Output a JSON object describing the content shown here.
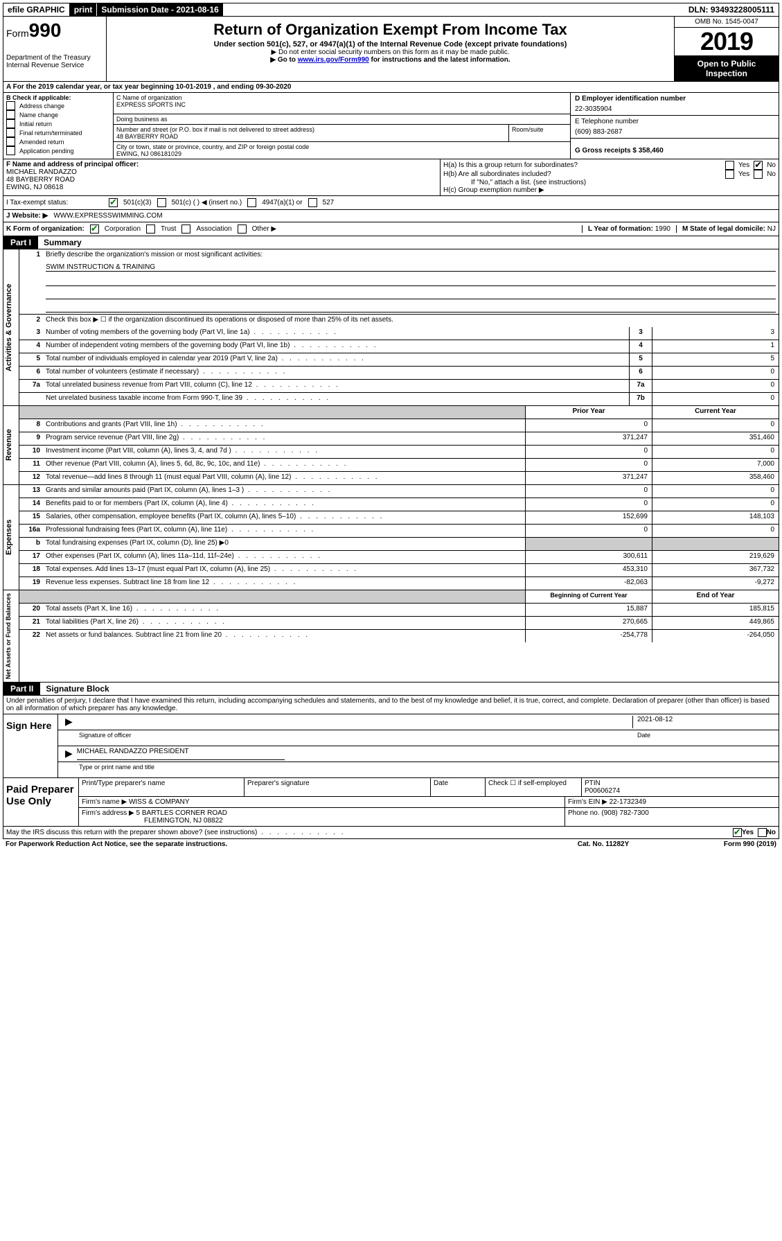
{
  "topbar": {
    "efile": "efile GRAPHIC",
    "print": "print",
    "submission": "Submission Date - 2021-08-16",
    "dln": "DLN: 93493228005111"
  },
  "header": {
    "form_prefix": "Form",
    "form_number": "990",
    "dept": "Department of the Treasury",
    "irs": "Internal Revenue Service",
    "title": "Return of Organization Exempt From Income Tax",
    "subtitle": "Under section 501(c), 527, or 4947(a)(1) of the Internal Revenue Code (except private foundations)",
    "note1": "▶ Do not enter social security numbers on this form as it may be made public.",
    "note2_pre": "▶ Go to ",
    "note2_link": "www.irs.gov/Form990",
    "note2_post": " for instructions and the latest information.",
    "omb": "OMB No. 1545-0047",
    "year": "2019",
    "open": "Open to Public Inspection"
  },
  "line_a": "A For the 2019 calendar year, or tax year beginning 10-01-2019    , and ending 09-30-2020",
  "box_b": {
    "label": "B Check if applicable:",
    "items": [
      "Address change",
      "Name change",
      "Initial return",
      "Final return/terminated",
      "Amended return",
      "Application pending"
    ]
  },
  "box_c": {
    "name_label": "C Name of organization",
    "name": "EXPRESS SPORTS INC",
    "dba_label": "Doing business as",
    "addr_label": "Number and street (or P.O. box if mail is not delivered to street address)",
    "addr": "48 BAYBERRY ROAD",
    "room_label": "Room/suite",
    "city_label": "City or town, state or province, country, and ZIP or foreign postal code",
    "city": "EWING, NJ  086181029"
  },
  "box_d": {
    "label": "D Employer identification number",
    "value": "22-3035904"
  },
  "box_e": {
    "label": "E Telephone number",
    "value": "(609) 883-2687"
  },
  "box_g": {
    "label": "G Gross receipts $",
    "value": "358,460"
  },
  "box_f": {
    "label": "F Name and address of principal officer:",
    "name": "MICHAEL RANDAZZO",
    "addr1": "48 BAYBERRY ROAD",
    "addr2": "EWING, NJ  08618"
  },
  "box_h": {
    "ha": "H(a)  Is this a group return for subordinates?",
    "hb": "H(b)  Are all subordinates included?",
    "hb_note": "If \"No,\" attach a list. (see instructions)",
    "hc": "H(c)  Group exemption number ▶",
    "yes": "Yes",
    "no": "No"
  },
  "line_i": {
    "label": "I    Tax-exempt status:",
    "opts": [
      "501(c)(3)",
      "501(c) (   ) ◀ (insert no.)",
      "4947(a)(1) or",
      "527"
    ]
  },
  "line_j": {
    "label": "J   Website: ▶",
    "value": "WWW.EXPRESSSWIMMING.COM"
  },
  "line_k": {
    "label": "K Form of organization:",
    "opts": [
      "Corporation",
      "Trust",
      "Association",
      "Other ▶"
    ],
    "l_label": "L Year of formation:",
    "l_value": "1990",
    "m_label": "M State of legal domicile:",
    "m_value": "NJ"
  },
  "part1": {
    "label": "Part I",
    "title": "Summary"
  },
  "governance": {
    "side": "Activities & Governance",
    "l1": "Briefly describe the organization's mission or most significant activities:",
    "l1v": "SWIM INSTRUCTION & TRAINING",
    "l2": "Check this box ▶ ☐  if the organization discontinued its operations or disposed of more than 25% of its net assets.",
    "l3": "Number of voting members of the governing body (Part VI, line 1a)",
    "l3v": "3",
    "l4": "Number of independent voting members of the governing body (Part VI, line 1b)",
    "l4v": "1",
    "l5": "Total number of individuals employed in calendar year 2019 (Part V, line 2a)",
    "l5v": "5",
    "l6": "Total number of volunteers (estimate if necessary)",
    "l6v": "0",
    "l7a": "Total unrelated business revenue from Part VIII, column (C), line 12",
    "l7av": "0",
    "l7b": "Net unrelated business taxable income from Form 990-T, line 39",
    "l7bv": "0"
  },
  "revenue": {
    "side": "Revenue",
    "prior": "Prior Year",
    "current": "Current Year",
    "rows": [
      {
        "n": "8",
        "d": "Contributions and grants (Part VIII, line 1h)",
        "p": "0",
        "c": "0"
      },
      {
        "n": "9",
        "d": "Program service revenue (Part VIII, line 2g)",
        "p": "371,247",
        "c": "351,460"
      },
      {
        "n": "10",
        "d": "Investment income (Part VIII, column (A), lines 3, 4, and 7d )",
        "p": "0",
        "c": "0"
      },
      {
        "n": "11",
        "d": "Other revenue (Part VIII, column (A), lines 5, 6d, 8c, 9c, 10c, and 11e)",
        "p": "0",
        "c": "7,000"
      },
      {
        "n": "12",
        "d": "Total revenue—add lines 8 through 11 (must equal Part VIII, column (A), line 12)",
        "p": "371,247",
        "c": "358,460"
      }
    ]
  },
  "expenses": {
    "side": "Expenses",
    "rows": [
      {
        "n": "13",
        "d": "Grants and similar amounts paid (Part IX, column (A), lines 1–3 )",
        "p": "0",
        "c": "0"
      },
      {
        "n": "14",
        "d": "Benefits paid to or for members (Part IX, column (A), line 4)",
        "p": "0",
        "c": "0"
      },
      {
        "n": "15",
        "d": "Salaries, other compensation, employee benefits (Part IX, column (A), lines 5–10)",
        "p": "152,699",
        "c": "148,103"
      },
      {
        "n": "16a",
        "d": "Professional fundraising fees (Part IX, column (A), line 11e)",
        "p": "0",
        "c": "0"
      },
      {
        "n": "b",
        "d": "Total fundraising expenses (Part IX, column (D), line 25) ▶0",
        "p": "",
        "c": "",
        "shaded": true
      },
      {
        "n": "17",
        "d": "Other expenses (Part IX, column (A), lines 11a–11d, 11f–24e)",
        "p": "300,611",
        "c": "219,629"
      },
      {
        "n": "18",
        "d": "Total expenses. Add lines 13–17 (must equal Part IX, column (A), line 25)",
        "p": "453,310",
        "c": "367,732"
      },
      {
        "n": "19",
        "d": "Revenue less expenses. Subtract line 18 from line 12",
        "p": "-82,063",
        "c": "-9,272"
      }
    ]
  },
  "netassets": {
    "side": "Net Assets or Fund Balances",
    "begin": "Beginning of Current Year",
    "end": "End of Year",
    "rows": [
      {
        "n": "20",
        "d": "Total assets (Part X, line 16)",
        "p": "15,887",
        "c": "185,815"
      },
      {
        "n": "21",
        "d": "Total liabilities (Part X, line 26)",
        "p": "270,665",
        "c": "449,865"
      },
      {
        "n": "22",
        "d": "Net assets or fund balances. Subtract line 21 from line 20",
        "p": "-254,778",
        "c": "-264,050"
      }
    ]
  },
  "part2": {
    "label": "Part II",
    "title": "Signature Block",
    "declaration": "Under penalties of perjury, I declare that I have examined this return, including accompanying schedules and statements, and to the best of my knowledge and belief, it is true, correct, and complete. Declaration of preparer (other than officer) is based on all information of which preparer has any knowledge."
  },
  "sign": {
    "here": "Sign Here",
    "sig_officer": "Signature of officer",
    "date": "2021-08-12",
    "date_label": "Date",
    "name": "MICHAEL RANDAZZO  PRESIDENT",
    "name_label": "Type or print name and title"
  },
  "paid": {
    "label": "Paid Preparer Use Only",
    "h1": "Print/Type preparer's name",
    "h2": "Preparer's signature",
    "h3": "Date",
    "h4_a": "Check ☐ if self-employed",
    "h5": "PTIN",
    "ptin": "P00606274",
    "firm_name_label": "Firm's name     ▶",
    "firm_name": "WISS & COMPANY",
    "firm_ein_label": "Firm's EIN ▶",
    "firm_ein": "22-1732349",
    "firm_addr_label": "Firm's address ▶",
    "firm_addr1": "5 BARTLES CORNER ROAD",
    "firm_addr2": "FLEMINGTON, NJ  08822",
    "phone_label": "Phone no.",
    "phone": "(908) 782-7300"
  },
  "footer": {
    "discuss": "May the IRS discuss this return with the preparer shown above? (see instructions)",
    "yes": "Yes",
    "no": "No",
    "paperwork": "For Paperwork Reduction Act Notice, see the separate instructions.",
    "cat": "Cat. No. 11282Y",
    "form": "Form 990 (2019)"
  }
}
